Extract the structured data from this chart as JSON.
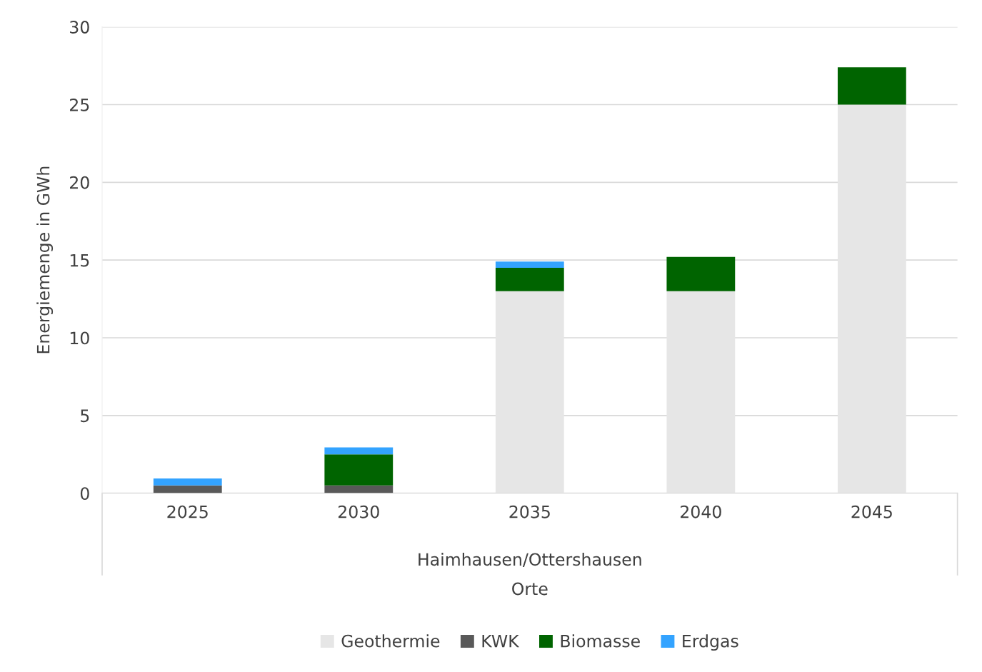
{
  "chart_data": {
    "type": "bar",
    "stacked": true,
    "categories": [
      "2025",
      "2030",
      "2035",
      "2040",
      "2045"
    ],
    "series": [
      {
        "name": "Geothermie",
        "color": "#e6e6e6",
        "values": [
          0,
          0,
          13,
          13,
          25
        ]
      },
      {
        "name": "KWK",
        "color": "#595959",
        "values": [
          0.5,
          0.5,
          0,
          0,
          0
        ]
      },
      {
        "name": "Biomasse",
        "color": "#006400",
        "values": [
          0,
          2.0,
          1.5,
          2.2,
          2.4
        ]
      },
      {
        "name": "Erdgas",
        "color": "#33a3ff",
        "values": [
          0.45,
          0.45,
          0.4,
          0,
          0
        ]
      }
    ],
    "ylabel": "Energiemenge in GWh",
    "xlabel": "Orte",
    "annotations": [
      "Haimhausen/Ottershausen"
    ],
    "ylim": [
      0,
      30
    ],
    "yticks": [
      0,
      5,
      10,
      15,
      20,
      25,
      30
    ],
    "grid": "y",
    "legend": "bottom"
  }
}
